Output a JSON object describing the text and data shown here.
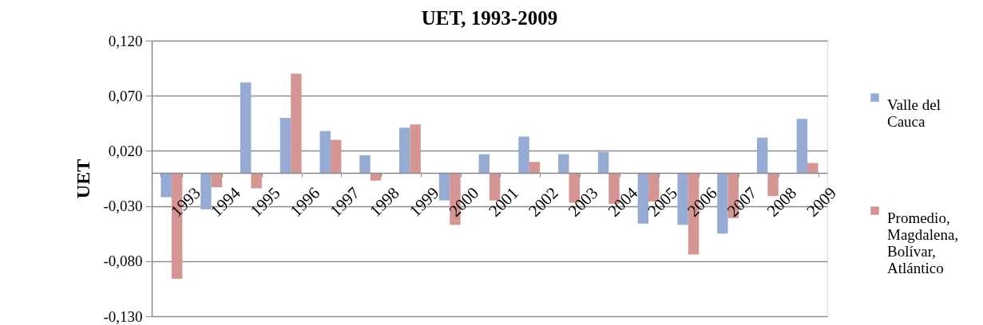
{
  "chart_data": {
    "type": "bar",
    "title": "UET, 1993-2009",
    "ylabel": "UET",
    "categories": [
      "1993",
      "1994",
      "1995",
      "1996",
      "1997",
      "1998",
      "1999",
      "2000",
      "2001",
      "2002",
      "2003",
      "2004",
      "2005",
      "2006",
      "2007",
      "2008",
      "2009"
    ],
    "series": [
      {
        "name": "Valle del Cauca",
        "color": "#95abd3",
        "values": [
          -0.022,
          -0.033,
          0.082,
          0.05,
          0.038,
          0.016,
          0.041,
          -0.025,
          0.017,
          0.033,
          0.017,
          0.019,
          -0.046,
          -0.047,
          -0.055,
          0.032,
          0.049
        ]
      },
      {
        "name": "Promedio, Magdalena, Bolívar, Atlántico",
        "color": "#d59593",
        "values": [
          -0.096,
          -0.013,
          -0.014,
          0.09,
          0.03,
          -0.007,
          0.044,
          -0.047,
          -0.025,
          0.01,
          -0.027,
          -0.028,
          -0.026,
          -0.074,
          -0.041,
          -0.021,
          0.009
        ]
      }
    ],
    "ylim": [
      -0.13,
      0.12
    ],
    "yticks": [
      {
        "value": -0.13,
        "label": "-0,130"
      },
      {
        "value": -0.08,
        "label": "-0,080"
      },
      {
        "value": -0.03,
        "label": "-0,030"
      },
      {
        "value": 0.02,
        "label": "0,020"
      },
      {
        "value": 0.07,
        "label": "0,070"
      },
      {
        "value": 0.12,
        "label": "0,120"
      }
    ],
    "grid": "y",
    "legend": "right"
  }
}
